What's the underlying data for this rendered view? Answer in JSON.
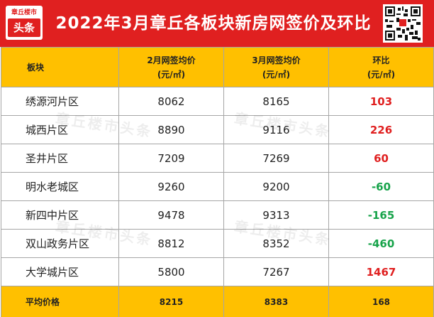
{
  "header": {
    "title": "2022年3月章丘各板块新房网签价及环比",
    "logo_top": "章丘楼市",
    "logo_bottom": "头条",
    "accent": "#e02020"
  },
  "watermark": "章丘楼市头条",
  "table": {
    "headers": {
      "area": "板块",
      "feb_line1": "2月网签均价",
      "feb_line2": "(元/㎡)",
      "mar_line1": "3月网签均价",
      "mar_line2": "(元/㎡)",
      "mom_line1": "环比",
      "mom_line2": "(元/㎡)"
    },
    "rows": [
      {
        "area": "绣源河片区",
        "feb": "8062",
        "mar": "8165",
        "mom": "103"
      },
      {
        "area": "城西片区",
        "feb": "8890",
        "mar": "9116",
        "mom": "226"
      },
      {
        "area": "圣井片区",
        "feb": "7209",
        "mar": "7269",
        "mom": "60"
      },
      {
        "area": "明水老城区",
        "feb": "9260",
        "mar": "9200",
        "mom": "-60"
      },
      {
        "area": "新四中片区",
        "feb": "9478",
        "mar": "9313",
        "mom": "-165"
      },
      {
        "area": "双山政务片区",
        "feb": "8812",
        "mar": "8352",
        "mom": "-460"
      },
      {
        "area": "大学城片区",
        "feb": "5800",
        "mar": "7267",
        "mom": "1467"
      }
    ],
    "footer": {
      "label": "平均价格",
      "feb": "8215",
      "mar": "8383",
      "mom": "168"
    },
    "colors": {
      "header_bg": "#ffc000",
      "positive": "#e02020",
      "negative": "#17a34a"
    }
  }
}
